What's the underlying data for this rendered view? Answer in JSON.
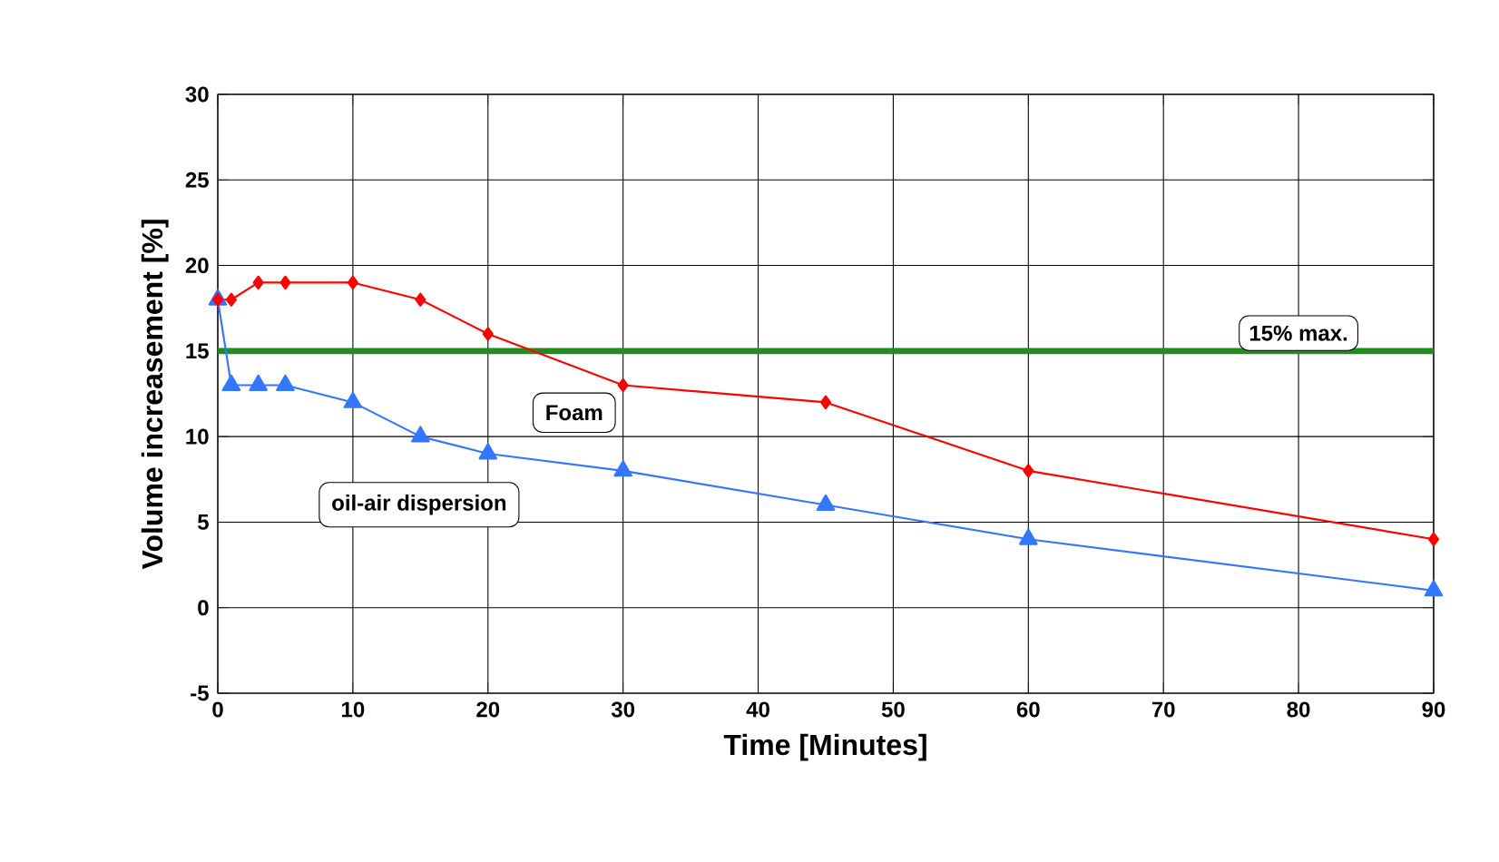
{
  "chart_data": {
    "type": "line",
    "xlabel": "Time [Minutes]",
    "ylabel": "Volume increasement [%]",
    "x": [
      0,
      1,
      3,
      5,
      10,
      15,
      20,
      30,
      45,
      60,
      90
    ],
    "series": [
      {
        "name": "Foam",
        "color": "#ff0000",
        "marker": "diamond",
        "values": [
          18,
          18,
          19,
          19,
          19,
          18,
          16,
          13,
          12,
          8,
          4
        ]
      },
      {
        "name": "oil-air dispersion",
        "color": "#3377ff",
        "marker": "triangle",
        "values": [
          18,
          13,
          13,
          13,
          12,
          10,
          9,
          8,
          6,
          4,
          1
        ]
      }
    ],
    "xlim": [
      0,
      90
    ],
    "ylim": [
      -5,
      30
    ],
    "xticks": [
      0,
      10,
      20,
      30,
      40,
      50,
      60,
      70,
      80,
      90
    ],
    "yticks": [
      -5,
      0,
      5,
      10,
      15,
      20,
      25,
      30
    ],
    "grid": true,
    "line_style": "solid",
    "ref_lines": [
      {
        "axis": "y",
        "value": 15,
        "label": "15% max.",
        "color": "#228b22"
      }
    ]
  }
}
